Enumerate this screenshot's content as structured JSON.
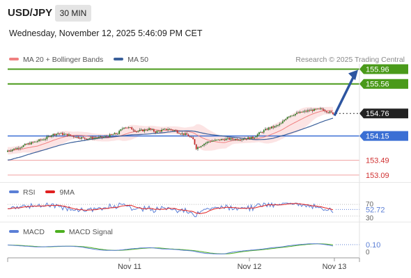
{
  "header": {
    "pair": "USD/JPY",
    "timeframe": "30 MIN",
    "datetime": "Wednesday, November 12, 2025 5:46:09 PM CET",
    "research": "Research © 2025 Trading Central"
  },
  "legend_main": [
    {
      "label": "MA 20 + Bollinger Bands",
      "color": "#f08080"
    },
    {
      "label": "MA 50",
      "color": "#3a5f9a"
    }
  ],
  "legend_rsi": [
    {
      "label": "RSI",
      "color": "#5b7fd6"
    },
    {
      "label": "9MA",
      "color": "#e02020"
    }
  ],
  "legend_macd": [
    {
      "label": "MACD",
      "color": "#5b7fd6"
    },
    {
      "label": "MACD Signal",
      "color": "#4caf1f"
    }
  ],
  "chart_data": [
    {
      "type": "candlestick",
      "price_range": [
        152.9,
        156.1
      ],
      "levels": [
        {
          "value": 155.96,
          "label": "155.96",
          "style": "resistance",
          "color": "#4a9a1a"
        },
        {
          "value": 155.56,
          "label": "155.56",
          "style": "resistance",
          "color": "#4a9a1a"
        },
        {
          "value": 154.76,
          "label": "154.76",
          "style": "current",
          "color": "#222222"
        },
        {
          "value": 154.15,
          "label": "154.15",
          "style": "pivot",
          "color": "#3b6fd4"
        },
        {
          "value": 153.49,
          "label": "153.49",
          "style": "support",
          "color": "#e06666"
        },
        {
          "value": 153.09,
          "label": "153.09",
          "style": "support",
          "color": "#e06666"
        }
      ],
      "x_ticks": [
        "Nov 11",
        "Nov 12",
        "Nov 13"
      ],
      "close_path": [
        [
          0,
          153.75
        ],
        [
          6,
          153.82
        ],
        [
          12,
          153.92
        ],
        [
          18,
          154.0
        ],
        [
          24,
          154.08
        ],
        [
          28,
          154.18
        ],
        [
          32,
          154.22
        ],
        [
          38,
          154.18
        ],
        [
          44,
          154.12
        ],
        [
          50,
          154.08
        ],
        [
          56,
          154.1
        ],
        [
          62,
          154.12
        ],
        [
          66,
          154.18
        ],
        [
          70,
          154.22
        ],
        [
          74,
          154.4
        ],
        [
          78,
          154.36
        ],
        [
          82,
          154.28
        ],
        [
          86,
          154.3
        ],
        [
          90,
          154.34
        ],
        [
          94,
          154.26
        ],
        [
          98,
          154.3
        ],
        [
          102,
          154.34
        ],
        [
          106,
          154.3
        ],
        [
          110,
          154.22
        ],
        [
          114,
          154.18
        ],
        [
          118,
          154.05
        ],
        [
          120,
          153.82
        ],
        [
          124,
          153.92
        ],
        [
          128,
          154.0
        ],
        [
          134,
          154.04
        ],
        [
          140,
          154.07
        ],
        [
          146,
          154.06
        ],
        [
          150,
          154.08
        ],
        [
          156,
          154.1
        ],
        [
          160,
          154.22
        ],
        [
          166,
          154.36
        ],
        [
          170,
          154.4
        ],
        [
          174,
          154.48
        ],
        [
          178,
          154.68
        ],
        [
          184,
          154.76
        ],
        [
          188,
          154.8
        ],
        [
          192,
          154.84
        ],
        [
          196,
          154.86
        ],
        [
          200,
          154.88
        ],
        [
          204,
          154.8
        ],
        [
          207,
          154.76
        ]
      ],
      "annotation": "arrow from 154.76 toward 155.96",
      "rsi": {
        "value": "52.72",
        "levels": [
          "70",
          "30"
        ],
        "range": [
          20,
          80
        ]
      },
      "macd": {
        "value": "0.10",
        "zero_label": "0"
      }
    }
  ]
}
